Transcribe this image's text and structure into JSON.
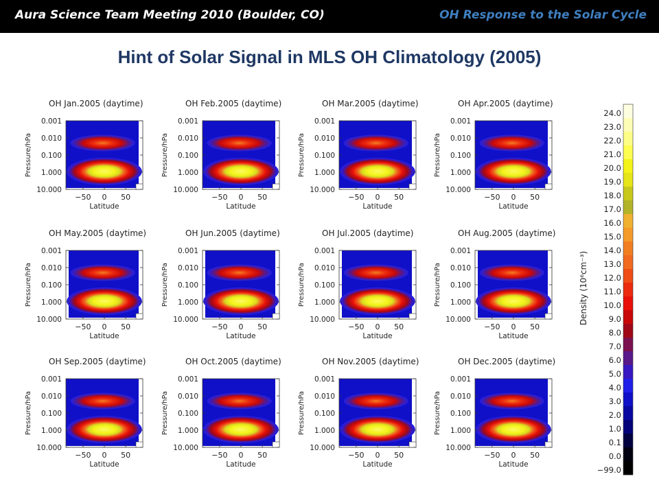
{
  "header": {
    "left_title": "Aura Science Team Meeting 2010 (Boulder, CO)",
    "right_title": "OH Response to the Solar Cycle",
    "background_color": "#000000",
    "left_color": "#ffffff",
    "right_color": "#3f7fc0"
  },
  "page_title": "Hint of Solar Signal in MLS OH Climatology (2005)",
  "chart_data": {
    "type": "heatmap",
    "panels": [
      {
        "title": "OH  Jan.2005  (daytime)",
        "month": "Jan"
      },
      {
        "title": "OH  Feb.2005  (daytime)",
        "month": "Feb"
      },
      {
        "title": "OH  Mar.2005  (daytime)",
        "month": "Mar"
      },
      {
        "title": "OH  Apr.2005  (daytime)",
        "month": "Apr"
      },
      {
        "title": "OH  May.2005  (daytime)",
        "month": "May"
      },
      {
        "title": "OH  Jun.2005  (daytime)",
        "month": "Jun"
      },
      {
        "title": "OH  Jul.2005  (daytime)",
        "month": "Jul"
      },
      {
        "title": "OH  Aug.2005  (daytime)",
        "month": "Aug"
      },
      {
        "title": "OH  Sep.2005  (daytime)",
        "month": "Sep"
      },
      {
        "title": "OH  Oct.2005  (daytime)",
        "month": "Oct"
      },
      {
        "title": "OH  Nov.2005  (daytime)",
        "month": "Nov"
      },
      {
        "title": "OH  Dec.2005  (daytime)",
        "month": "Dec"
      }
    ],
    "xlabel": "Latitude",
    "ylabel": "Pressure/hPa",
    "x_ticks": [
      -50,
      0,
      50
    ],
    "x_tick_labels": [
      "−50",
      "0",
      "50"
    ],
    "xlim": [
      -90,
      90
    ],
    "y_ticks": [
      0.001,
      0.01,
      0.1,
      1.0,
      10.0
    ],
    "y_tick_labels": [
      "0.001",
      "0.010",
      "0.100",
      "1.000",
      "10.000"
    ],
    "y_scale": "log",
    "y_inverted": true,
    "colorbar": {
      "label": "Density (10⁶cm⁻³)",
      "levels": [
        {
          "label": "24.0",
          "color": "#fdfde0"
        },
        {
          "label": "23.0",
          "color": "#fdfdb6"
        },
        {
          "label": "22.0",
          "color": "#fdfd86"
        },
        {
          "label": "21.0",
          "color": "#fdfd50"
        },
        {
          "label": "20.0",
          "color": "#f4f41a"
        },
        {
          "label": "19.0",
          "color": "#e5e518"
        },
        {
          "label": "18.0",
          "color": "#c8c81c"
        },
        {
          "label": "17.0",
          "color": "#b3b328"
        },
        {
          "label": "16.0",
          "color": "#f0b030"
        },
        {
          "label": "15.0",
          "color": "#f49a2a"
        },
        {
          "label": "14.0",
          "color": "#f27e22"
        },
        {
          "label": "13.0",
          "color": "#f06a20"
        },
        {
          "label": "12.0",
          "color": "#ee4d16"
        },
        {
          "label": "11.0",
          "color": "#ec2b0e"
        },
        {
          "label": "10.0",
          "color": "#e81008"
        },
        {
          "label": "9.0",
          "color": "#c80808"
        },
        {
          "label": "8.0",
          "color": "#a00818"
        },
        {
          "label": "7.0",
          "color": "#7a1050"
        },
        {
          "label": "6.0",
          "color": "#581888"
        },
        {
          "label": "5.0",
          "color": "#3818c0"
        },
        {
          "label": "4.0",
          "color": "#2020e8"
        },
        {
          "label": "3.0",
          "color": "#1010c8"
        },
        {
          "label": "2.0",
          "color": "#0808a0"
        },
        {
          "label": "1.0",
          "color": "#040478"
        },
        {
          "label": "0.1",
          "color": "#020240"
        },
        {
          "label": "0.0",
          "color": "#000010"
        },
        {
          "label": "−99.0",
          "color": "#000000"
        }
      ]
    }
  }
}
